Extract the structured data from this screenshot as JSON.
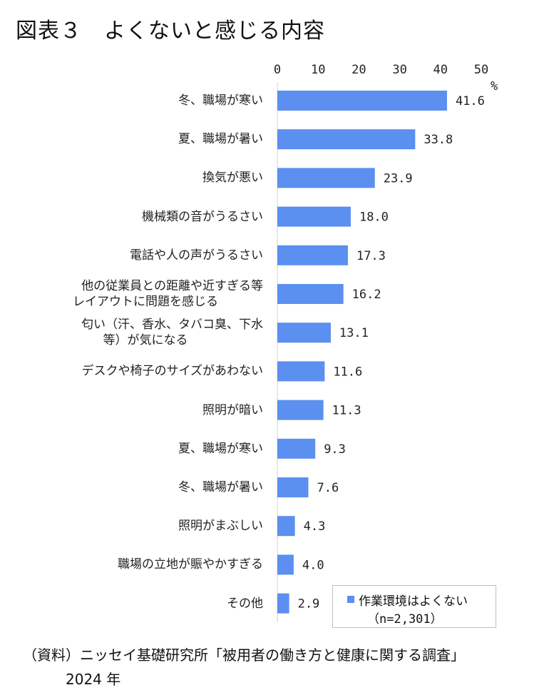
{
  "title": "図表３　よくないと感じる内容",
  "chart_data": {
    "type": "bar",
    "orientation": "horizontal",
    "unit": "%",
    "xlim": [
      0,
      50
    ],
    "ticks": [
      0,
      10,
      20,
      30,
      40,
      50
    ],
    "categories": [
      "冬、職場が寒い",
      "夏、職場が暑い",
      "換気が悪い",
      "機械類の音がうるさい",
      "電話や人の声がうるさい",
      "他の従業員との距離や近すぎる等\nレイアウトに問題を感じる",
      "匂い（汗、香水、タバコ臭、下水\n等）が気になる",
      "デスクや椅子のサイズがあわない",
      "照明が暗い",
      "夏、職場が寒い",
      "冬、職場が暑い",
      "照明がまぶしい",
      "職場の立地が賑やかすぎる",
      "その他"
    ],
    "series": [
      {
        "name": "作業環境はよくない",
        "values": [
          41.6,
          33.8,
          23.9,
          18.0,
          17.3,
          16.2,
          13.1,
          11.6,
          11.3,
          9.3,
          7.6,
          4.3,
          4.0,
          2.9
        ],
        "labels": [
          "41.6",
          "33.8",
          "23.9",
          "18.0",
          "17.3",
          "16.2",
          "13.1",
          "11.6",
          "11.3",
          "9.3",
          "7.6",
          "4.3",
          "4.0",
          "2.9"
        ]
      }
    ],
    "legend": {
      "label": "作業環境はよくない",
      "note": "（n=2,301）",
      "position": "bottom-right"
    },
    "bar_color": "#5b8ff0",
    "grid": false
  },
  "source": "（資料）ニッセイ基礎研究所「被用者の働き方と健康に関する調査」",
  "year": "2024 年"
}
